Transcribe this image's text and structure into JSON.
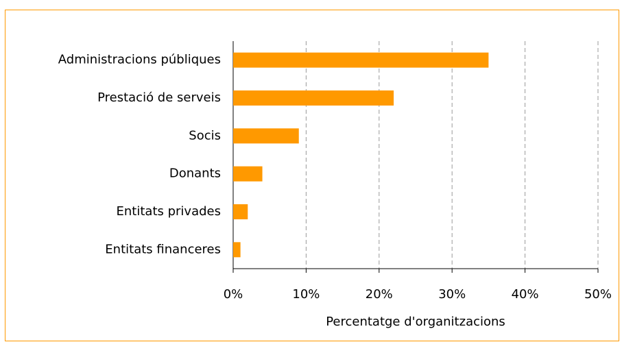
{
  "chart_data": {
    "type": "bar",
    "orientation": "horizontal",
    "categories": [
      "Administracions públiques",
      "Prestació de serveis",
      "Socis",
      "Donants",
      "Entitats privades",
      "Entitats financeres"
    ],
    "values": [
      35,
      22,
      9,
      4,
      2,
      1
    ],
    "color": "#ff9900",
    "xlabel": "Percentatge d'organitzacions",
    "xlim": [
      0,
      50
    ],
    "xticks": [
      {
        "value": 0,
        "label": "0%"
      },
      {
        "value": 10,
        "label": "10%"
      },
      {
        "value": 20,
        "label": "20%"
      },
      {
        "value": 30,
        "label": "30%"
      },
      {
        "value": 40,
        "label": "40%"
      },
      {
        "value": 50,
        "label": "50%"
      }
    ],
    "grid": true
  }
}
